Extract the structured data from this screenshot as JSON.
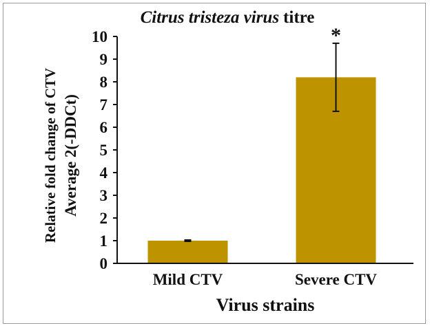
{
  "chart_data": {
    "type": "bar",
    "title_italic": "Citrus tristeza virus",
    "title_plain": "titre",
    "ylabel_line1": "Relative fold change of CTV",
    "ylabel_line2": "Average 2(-DDCt)",
    "xlabel": "Virus strains",
    "categories": [
      "Mild CTV",
      "Severe CTV"
    ],
    "values": [
      1.0,
      8.2
    ],
    "errors": [
      0.03,
      1.5
    ],
    "annotations": [
      "",
      "*"
    ],
    "ylim": [
      0,
      10
    ],
    "yticks": [
      "0",
      "1",
      "2",
      "3",
      "4",
      "5",
      "6",
      "7",
      "8",
      "9",
      "10"
    ],
    "bar_color": "#BE9300",
    "grid": false
  }
}
